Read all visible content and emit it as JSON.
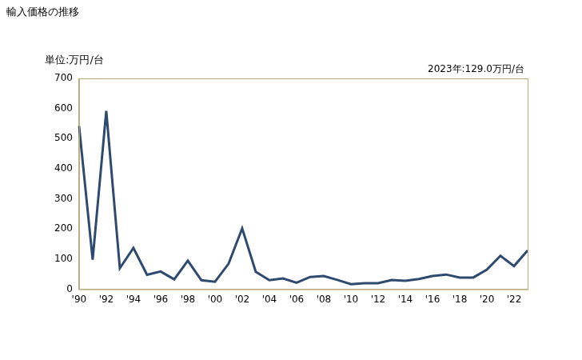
{
  "chart_data": {
    "type": "line",
    "title": "輸入価格の推移",
    "y_label": "単位:万円/台",
    "annotation": "2023年:129.0万円/台",
    "categories": [
      "'90",
      null,
      "'92",
      null,
      "'94",
      null,
      "'96",
      null,
      "'98",
      null,
      "'00",
      null,
      "'02",
      null,
      "'04",
      null,
      "'06",
      null,
      "'08",
      null,
      "'10",
      null,
      "'12",
      null,
      "'14",
      null,
      "'16",
      null,
      "'18",
      null,
      "'20",
      null,
      "'22",
      null
    ],
    "values": [
      542,
      98,
      592,
      70,
      137,
      48,
      59,
      33,
      95,
      30,
      25,
      85,
      202,
      58,
      30,
      36,
      22,
      41,
      44,
      31,
      17,
      20,
      20,
      31,
      28,
      34,
      44,
      49,
      39,
      39,
      65,
      111,
      77,
      129
    ],
    "color": "#2e4a6e",
    "marker": "none",
    "ylim": [
      0,
      700
    ],
    "yticks": [
      0,
      100,
      200,
      300,
      400,
      500,
      600,
      700
    ],
    "grid": false
  }
}
